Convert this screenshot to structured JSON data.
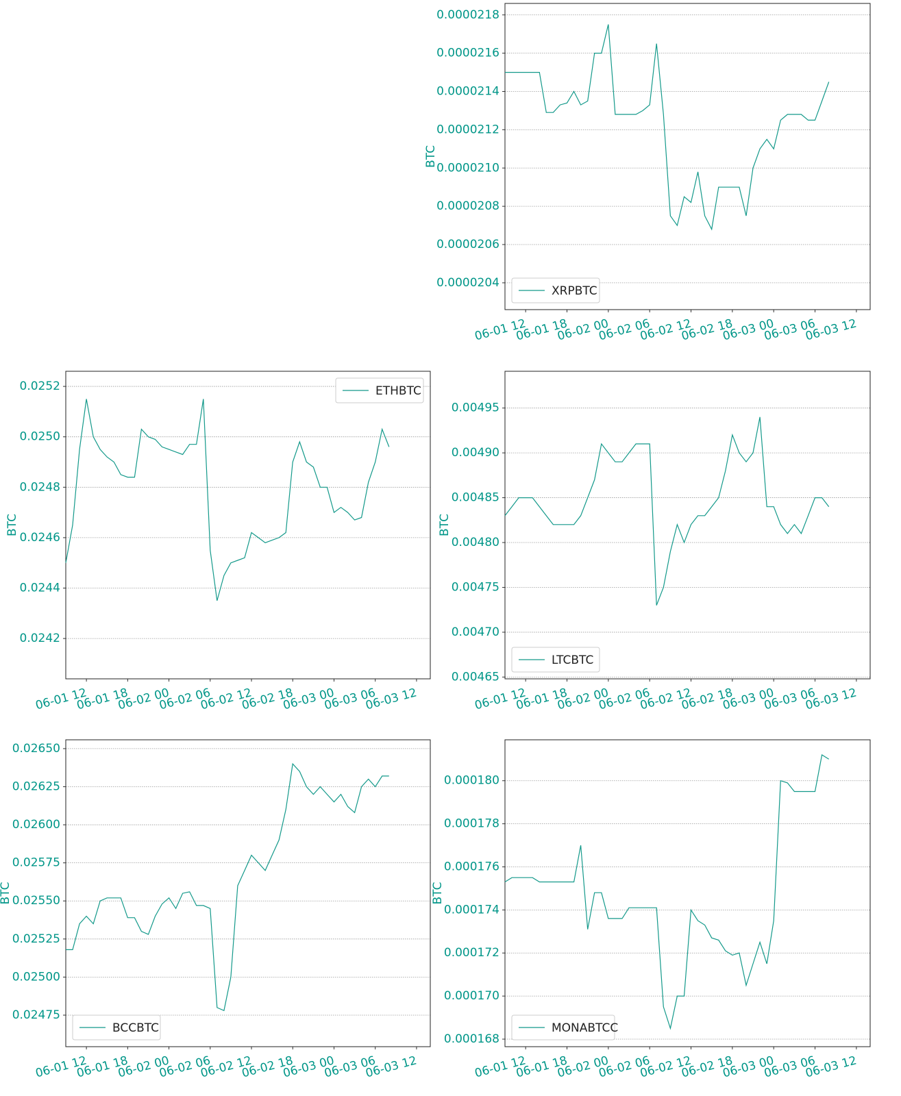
{
  "chart_data": [
    {
      "type": "line",
      "ylabel": "BTC",
      "legend": "lower left",
      "grid": true,
      "x": [
        "06-01 09",
        "06-01 10",
        "06-01 11",
        "06-01 12",
        "06-01 13",
        "06-01 14",
        "06-01 15",
        "06-01 16",
        "06-01 17",
        "06-01 18",
        "06-01 19",
        "06-01 20",
        "06-01 21",
        "06-01 22",
        "06-01 23",
        "06-02 00",
        "06-02 01",
        "06-02 02",
        "06-02 03",
        "06-02 04",
        "06-02 05",
        "06-02 06",
        "06-02 07",
        "06-02 08",
        "06-02 09",
        "06-02 10",
        "06-02 11",
        "06-02 12",
        "06-02 13",
        "06-02 14",
        "06-02 15",
        "06-02 16",
        "06-02 17",
        "06-02 18",
        "06-02 19",
        "06-02 20",
        "06-02 21",
        "06-02 22",
        "06-02 23",
        "06-03 00",
        "06-03 01",
        "06-03 02",
        "06-03 03",
        "06-03 04",
        "06-03 05",
        "06-03 06",
        "06-03 07",
        "06-03 08"
      ],
      "series": [
        {
          "name": "XRPBTC",
          "color": "#13998a",
          "values": [
            2.15e-05,
            2.15e-05,
            2.15e-05,
            2.15e-05,
            2.15e-05,
            2.15e-05,
            2.129e-05,
            2.129e-05,
            2.133e-05,
            2.134e-05,
            2.14e-05,
            2.133e-05,
            2.135e-05,
            2.16e-05,
            2.16e-05,
            2.175e-05,
            2.128e-05,
            2.128e-05,
            2.128e-05,
            2.128e-05,
            2.13e-05,
            2.133e-05,
            2.165e-05,
            2.128e-05,
            2.075e-05,
            2.07e-05,
            2.085e-05,
            2.082e-05,
            2.098e-05,
            2.075e-05,
            2.068e-05,
            2.09e-05,
            2.09e-05,
            2.09e-05,
            2.09e-05,
            2.075e-05,
            2.1e-05,
            2.11e-05,
            2.115e-05,
            2.11e-05,
            2.125e-05,
            2.128e-05,
            2.128e-05,
            2.128e-05,
            2.125e-05,
            2.125e-05,
            2.135e-05,
            2.145e-05
          ]
        }
      ],
      "xlim": [
        "06-01 09",
        "06-03 14"
      ],
      "xticks": [
        "06-01 12",
        "06-01 18",
        "06-02 00",
        "06-02 06",
        "06-02 12",
        "06-02 18",
        "06-03 00",
        "06-03 06",
        "06-03 12"
      ],
      "ylim": [
        2.026e-05,
        2.186e-05
      ],
      "yticks": [
        {
          "value": 2.04e-05,
          "label": "0.0000204"
        },
        {
          "value": 2.06e-05,
          "label": "0.0000206"
        },
        {
          "value": 2.08e-05,
          "label": "0.0000208"
        },
        {
          "value": 2.1e-05,
          "label": "0.0000210"
        },
        {
          "value": 2.12e-05,
          "label": "0.0000212"
        },
        {
          "value": 2.14e-05,
          "label": "0.0000214"
        },
        {
          "value": 2.16e-05,
          "label": "0.0000216"
        },
        {
          "value": 2.18e-05,
          "label": "0.0000218"
        }
      ]
    },
    {
      "type": "line",
      "ylabel": "BTC",
      "legend": "upper right",
      "grid": true,
      "x": [
        "06-01 09",
        "06-01 10",
        "06-01 11",
        "06-01 12",
        "06-01 13",
        "06-01 14",
        "06-01 15",
        "06-01 16",
        "06-01 17",
        "06-01 18",
        "06-01 19",
        "06-01 20",
        "06-01 21",
        "06-01 22",
        "06-01 23",
        "06-02 00",
        "06-02 01",
        "06-02 02",
        "06-02 03",
        "06-02 04",
        "06-02 05",
        "06-02 06",
        "06-02 07",
        "06-02 08",
        "06-02 09",
        "06-02 10",
        "06-02 11",
        "06-02 12",
        "06-02 13",
        "06-02 14",
        "06-02 15",
        "06-02 16",
        "06-02 17",
        "06-02 18",
        "06-02 19",
        "06-02 20",
        "06-02 21",
        "06-02 22",
        "06-02 23",
        "06-03 00",
        "06-03 01",
        "06-03 02",
        "06-03 03",
        "06-03 04",
        "06-03 05",
        "06-03 06",
        "06-03 07",
        "06-03 08"
      ],
      "series": [
        {
          "name": "ETHBTC",
          "color": "#13998a",
          "values": [
            0.0245,
            0.02465,
            0.02495,
            0.02515,
            0.025,
            0.02495,
            0.02492,
            0.0249,
            0.02485,
            0.02484,
            0.02484,
            0.02503,
            0.025,
            0.02499,
            0.02496,
            0.02495,
            0.02494,
            0.02493,
            0.02497,
            0.02497,
            0.02515,
            0.02455,
            0.02435,
            0.02445,
            0.0245,
            0.02451,
            0.02452,
            0.02462,
            0.0246,
            0.02458,
            0.02459,
            0.0246,
            0.02462,
            0.0249,
            0.02498,
            0.0249,
            0.02488,
            0.0248,
            0.0248,
            0.0247,
            0.02472,
            0.0247,
            0.02467,
            0.02468,
            0.02482,
            0.0249,
            0.02503,
            0.02496
          ]
        }
      ],
      "xlim": [
        "06-01 09",
        "06-03 14"
      ],
      "xticks": [
        "06-01 12",
        "06-01 18",
        "06-02 00",
        "06-02 06",
        "06-02 12",
        "06-02 18",
        "06-03 00",
        "06-03 06",
        "06-03 12"
      ],
      "ylim": [
        0.02404,
        0.02526
      ],
      "yticks": [
        0.0242,
        0.0244,
        0.0246,
        0.0248,
        {
          "value": 0.025,
          "label": "0.0250"
        },
        0.0252
      ]
    },
    {
      "type": "line",
      "ylabel": "BTC",
      "legend": "lower left",
      "grid": true,
      "x": [
        "06-01 09",
        "06-01 10",
        "06-01 11",
        "06-01 12",
        "06-01 13",
        "06-01 14",
        "06-01 15",
        "06-01 16",
        "06-01 17",
        "06-01 18",
        "06-01 19",
        "06-01 20",
        "06-01 21",
        "06-01 22",
        "06-01 23",
        "06-02 00",
        "06-02 01",
        "06-02 02",
        "06-02 03",
        "06-02 04",
        "06-02 05",
        "06-02 06",
        "06-02 07",
        "06-02 08",
        "06-02 09",
        "06-02 10",
        "06-02 11",
        "06-02 12",
        "06-02 13",
        "06-02 14",
        "06-02 15",
        "06-02 16",
        "06-02 17",
        "06-02 18",
        "06-02 19",
        "06-02 20",
        "06-02 21",
        "06-02 22",
        "06-02 23",
        "06-03 00",
        "06-03 01",
        "06-03 02",
        "06-03 03",
        "06-03 04",
        "06-03 05",
        "06-03 06",
        "06-03 07",
        "06-03 08"
      ],
      "series": [
        {
          "name": "LTCBTC",
          "color": "#13998a",
          "values": [
            0.00483,
            0.00484,
            0.00485,
            0.00485,
            0.00485,
            0.00484,
            0.00483,
            0.00482,
            0.00482,
            0.00482,
            0.00482,
            0.00483,
            0.00485,
            0.00487,
            0.00491,
            0.0049,
            0.00489,
            0.00489,
            0.0049,
            0.00491,
            0.00491,
            0.00491,
            0.00473,
            0.00475,
            0.00479,
            0.00482,
            0.0048,
            0.00482,
            0.00483,
            0.00483,
            0.00484,
            0.00485,
            0.00488,
            0.00492,
            0.0049,
            0.00489,
            0.0049,
            0.00494,
            0.00484,
            0.00484,
            0.00482,
            0.00481,
            0.00482,
            0.00481,
            0.00483,
            0.00485,
            0.00485,
            0.00484
          ]
        }
      ],
      "xlim": [
        "06-01 09",
        "06-03 14"
      ],
      "xticks": [
        "06-01 12",
        "06-01 18",
        "06-02 00",
        "06-02 06",
        "06-02 12",
        "06-02 18",
        "06-03 00",
        "06-03 06",
        "06-03 12"
      ],
      "ylim": [
        0.004648,
        0.004991
      ],
      "yticks": [
        0.00465,
        {
          "value": 0.0047,
          "label": "0.00470"
        },
        0.00475,
        {
          "value": 0.0048,
          "label": "0.00480"
        },
        0.00485,
        {
          "value": 0.0049,
          "label": "0.00490"
        },
        0.00495
      ]
    },
    {
      "type": "line",
      "ylabel": "BTC",
      "legend": "lower left",
      "grid": true,
      "x": [
        "06-01 09",
        "06-01 10",
        "06-01 11",
        "06-01 12",
        "06-01 13",
        "06-01 14",
        "06-01 15",
        "06-01 16",
        "06-01 17",
        "06-01 18",
        "06-01 19",
        "06-01 20",
        "06-01 21",
        "06-01 22",
        "06-01 23",
        "06-02 00",
        "06-02 01",
        "06-02 02",
        "06-02 03",
        "06-02 04",
        "06-02 05",
        "06-02 06",
        "06-02 07",
        "06-02 08",
        "06-02 09",
        "06-02 10",
        "06-02 11",
        "06-02 12",
        "06-02 13",
        "06-02 14",
        "06-02 15",
        "06-02 16",
        "06-02 17",
        "06-02 18",
        "06-02 19",
        "06-02 20",
        "06-02 21",
        "06-02 22",
        "06-02 23",
        "06-03 00",
        "06-03 01",
        "06-03 02",
        "06-03 03",
        "06-03 04",
        "06-03 05",
        "06-03 06",
        "06-03 07",
        "06-03 08"
      ],
      "series": [
        {
          "name": "BCCBTC",
          "color": "#13998a",
          "values": [
            0.02518,
            0.02518,
            0.02535,
            0.0254,
            0.02535,
            0.0255,
            0.02552,
            0.02552,
            0.02552,
            0.02539,
            0.02539,
            0.0253,
            0.02528,
            0.0254,
            0.02548,
            0.02552,
            0.02545,
            0.02555,
            0.02556,
            0.02547,
            0.02547,
            0.02545,
            0.0248,
            0.02478,
            0.025,
            0.0256,
            0.0257,
            0.0258,
            0.02575,
            0.0257,
            0.0258,
            0.0259,
            0.0261,
            0.0264,
            0.02635,
            0.02625,
            0.0262,
            0.02625,
            0.0262,
            0.02615,
            0.0262,
            0.02612,
            0.02608,
            0.02625,
            0.0263,
            0.02625,
            0.02632,
            0.02632
          ]
        }
      ],
      "xlim": [
        "06-01 09",
        "06-03 14"
      ],
      "xticks": [
        "06-01 12",
        "06-01 18",
        "06-02 00",
        "06-02 06",
        "06-02 12",
        "06-02 18",
        "06-03 00",
        "06-03 06",
        "06-03 12"
      ],
      "ylim": [
        0.024543,
        0.026558
      ],
      "yticks": [
        0.02475,
        {
          "value": 0.025,
          "label": "0.02500"
        },
        0.02525,
        {
          "value": 0.0255,
          "label": "0.02550"
        },
        0.02575,
        {
          "value": 0.026,
          "label": "0.02600"
        },
        0.02625,
        {
          "value": 0.0265,
          "label": "0.02650"
        }
      ]
    },
    {
      "type": "line",
      "ylabel": "BTC",
      "legend": "lower left",
      "grid": true,
      "x": [
        "06-01 09",
        "06-01 10",
        "06-01 11",
        "06-01 12",
        "06-01 13",
        "06-01 14",
        "06-01 15",
        "06-01 16",
        "06-01 17",
        "06-01 18",
        "06-01 19",
        "06-01 20",
        "06-01 21",
        "06-01 22",
        "06-01 23",
        "06-02 00",
        "06-02 01",
        "06-02 02",
        "06-02 03",
        "06-02 04",
        "06-02 05",
        "06-02 06",
        "06-02 07",
        "06-02 08",
        "06-02 09",
        "06-02 10",
        "06-02 11",
        "06-02 12",
        "06-02 13",
        "06-02 14",
        "06-02 15",
        "06-02 16",
        "06-02 17",
        "06-02 18",
        "06-02 19",
        "06-02 20",
        "06-02 21",
        "06-02 22",
        "06-02 23",
        "06-03 00",
        "06-03 01",
        "06-03 02",
        "06-03 03",
        "06-03 04",
        "06-03 05",
        "06-03 06",
        "06-03 07",
        "06-03 08"
      ],
      "series": [
        {
          "name": "MONABTCC",
          "color": "#13998a",
          "values": [
            0.0001753,
            0.0001755,
            0.0001755,
            0.0001755,
            0.0001755,
            0.0001753,
            0.0001753,
            0.0001753,
            0.0001753,
            0.0001753,
            0.0001753,
            0.000177,
            0.0001731,
            0.0001748,
            0.0001748,
            0.0001736,
            0.0001736,
            0.0001736,
            0.0001741,
            0.0001741,
            0.0001741,
            0.0001741,
            0.0001741,
            0.0001695,
            0.0001685,
            0.00017,
            0.00017,
            0.000174,
            0.0001735,
            0.0001733,
            0.0001727,
            0.0001726,
            0.0001721,
            0.0001719,
            0.000172,
            0.0001705,
            0.0001715,
            0.0001725,
            0.0001715,
            0.0001735,
            0.00018,
            0.0001799,
            0.0001795,
            0.0001795,
            0.0001795,
            0.0001795,
            0.0001812,
            0.000181
          ]
        }
      ],
      "xlim": [
        "06-01 09",
        "06-03 14"
      ],
      "xticks": [
        "06-01 12",
        "06-01 18",
        "06-02 00",
        "06-02 06",
        "06-02 12",
        "06-02 18",
        "06-03 00",
        "06-03 06",
        "06-03 12"
      ],
      "ylim": [
        0.00016765,
        0.0001819
      ],
      "yticks": [
        0.000168,
        {
          "value": 0.00017,
          "label": "0.000170"
        },
        0.000172,
        0.000174,
        0.000176,
        0.000178,
        {
          "value": 0.00018,
          "label": "0.000180"
        }
      ]
    }
  ]
}
